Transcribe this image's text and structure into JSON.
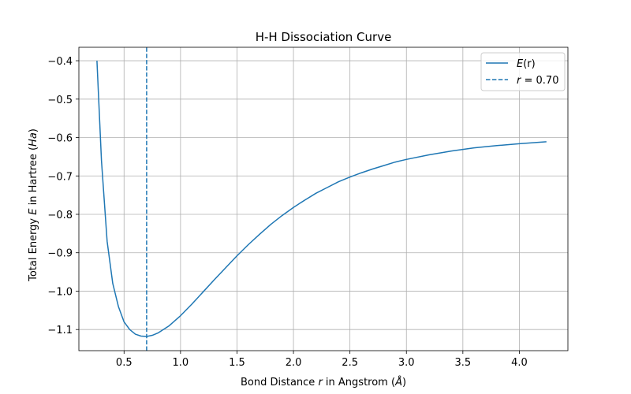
{
  "chart_data": {
    "type": "line",
    "title": "H-H Dissociation Curve",
    "xlabel": {
      "pre": "Bond Distance ",
      "var": "r",
      "post": " in Angstrom (",
      "unit": "Å",
      "close": ")"
    },
    "ylabel": {
      "pre": "Total Energy ",
      "var": "E",
      "mid": " in Hartree (",
      "unit": "Ha",
      "close": ")"
    },
    "xlim": [
      0.1,
      4.43
    ],
    "ylim": [
      -1.155,
      -0.365
    ],
    "xticks": [
      0.5,
      1.0,
      1.5,
      2.0,
      2.5,
      3.0,
      3.5,
      4.0
    ],
    "xtick_labels": [
      "0.5",
      "1.0",
      "1.5",
      "2.0",
      "2.5",
      "3.0",
      "3.5",
      "4.0"
    ],
    "yticks": [
      -1.1,
      -1.0,
      -0.9,
      -0.8,
      -0.7,
      -0.6,
      -0.5,
      -0.4
    ],
    "ytick_labels": [
      "−1.1",
      "−1.0",
      "−0.9",
      "−0.8",
      "−0.7",
      "−0.6",
      "−0.5",
      "−0.4"
    ],
    "grid": true,
    "legend_position": "top-right",
    "series": [
      {
        "name": "E(r)",
        "color": "#1f77b4",
        "style": "solid",
        "x": [
          0.26,
          0.3,
          0.35,
          0.4,
          0.45,
          0.5,
          0.55,
          0.6,
          0.65,
          0.7,
          0.75,
          0.8,
          0.9,
          1.0,
          1.1,
          1.2,
          1.3,
          1.4,
          1.5,
          1.6,
          1.7,
          1.8,
          1.9,
          2.0,
          2.1,
          2.2,
          2.3,
          2.4,
          2.5,
          2.6,
          2.7,
          2.8,
          2.9,
          3.0,
          3.2,
          3.4,
          3.6,
          3.8,
          4.0,
          4.24
        ],
        "y": [
          -0.4,
          -0.66,
          -0.87,
          -0.98,
          -1.04,
          -1.08,
          -1.1,
          -1.112,
          -1.117,
          -1.118,
          -1.115,
          -1.109,
          -1.09,
          -1.064,
          -1.034,
          -1.002,
          -0.97,
          -0.939,
          -0.908,
          -0.879,
          -0.852,
          -0.826,
          -0.803,
          -0.782,
          -0.763,
          -0.745,
          -0.73,
          -0.715,
          -0.703,
          -0.692,
          -0.682,
          -0.673,
          -0.664,
          -0.657,
          -0.645,
          -0.635,
          -0.627,
          -0.621,
          -0.616,
          -0.611
        ]
      },
      {
        "name": "r = 0.70",
        "color": "#1f77b4",
        "style": "dashed",
        "x": [
          0.7,
          0.7
        ],
        "y": [
          -1.155,
          -0.365
        ]
      }
    ],
    "legend": [
      {
        "var": "E",
        "paren": "(r)",
        "style": "solid"
      },
      {
        "var": "r",
        "rest": " = 0.70",
        "style": "dashed"
      }
    ]
  }
}
